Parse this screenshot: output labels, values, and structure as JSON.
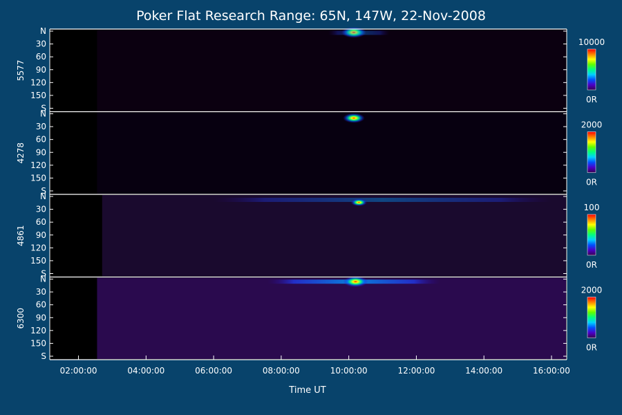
{
  "chart_data": {
    "type": "heatmap",
    "title": "Poker Flat Research Range: 65N, 147W, 22-Nov-2008",
    "xlabel": "Time UT",
    "x_ticks": [
      "02:00:00",
      "04:00:00",
      "06:00:00",
      "08:00:00",
      "10:00:00",
      "12:00:00",
      "14:00:00",
      "16:00:00"
    ],
    "x_range_hours": [
      1.15,
      16.45
    ],
    "y_ticks": [
      "N",
      "30",
      "60",
      "90",
      "120",
      "150",
      "S"
    ],
    "y_range_deg": [
      0,
      180
    ],
    "panels": [
      {
        "name": "5577",
        "cbar_max": "10000",
        "cbar_min": "0R",
        "data_start_hour": 2.55,
        "background": "#0b0010",
        "features": [
          {
            "kind": "spot",
            "time_h": 10.15,
            "angle_deg": 3,
            "intensity": 1.0
          },
          {
            "kind": "band",
            "time_start_h": 9.4,
            "time_end_h": 11.2,
            "angle_deg": 4,
            "intensity": 0.35
          }
        ]
      },
      {
        "name": "4278",
        "cbar_max": "2000",
        "cbar_min": "0R",
        "data_start_hour": 2.55,
        "background": "#070010",
        "features": [
          {
            "kind": "spot",
            "time_h": 10.15,
            "angle_deg": 10,
            "intensity": 0.85
          }
        ]
      },
      {
        "name": "4861",
        "cbar_max": "100",
        "cbar_min": "0R",
        "data_start_hour": 2.7,
        "background": "#1a0a2e",
        "features": [
          {
            "kind": "band",
            "time_start_h": 6.0,
            "time_end_h": 16.0,
            "angle_deg": 8,
            "intensity": 0.4
          },
          {
            "kind": "spot",
            "time_h": 10.3,
            "angle_deg": 14,
            "intensity": 0.55
          }
        ]
      },
      {
        "name": "6300",
        "cbar_max": "2000",
        "cbar_min": "0R",
        "data_start_hour": 2.55,
        "background": "#2a0a4e",
        "features": [
          {
            "kind": "band",
            "time_start_h": 7.6,
            "time_end_h": 12.7,
            "angle_deg": 6,
            "intensity": 0.8
          },
          {
            "kind": "spot",
            "time_h": 10.2,
            "angle_deg": 6,
            "intensity": 1.0
          }
        ]
      }
    ],
    "colorbar": [
      "#3a0050",
      "#4a00c8",
      "#0050ff",
      "#00d0ff",
      "#00ff80",
      "#60ff00",
      "#ffff00",
      "#ff8000",
      "#ff0000"
    ]
  }
}
